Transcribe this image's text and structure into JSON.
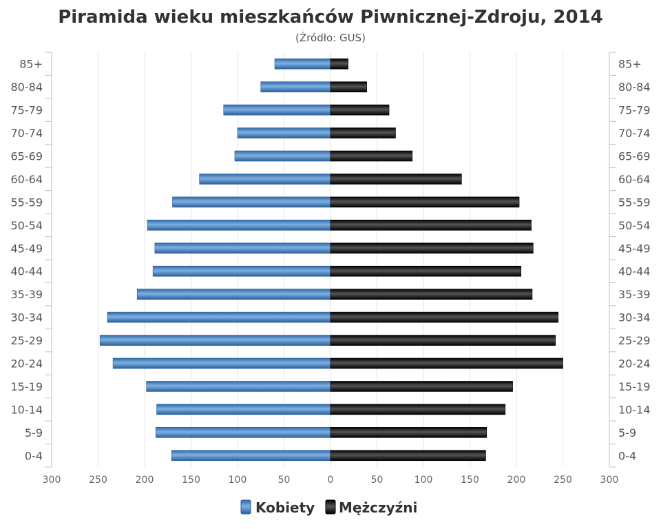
{
  "chart_data": {
    "type": "bar",
    "orientation": "horizontal",
    "layout": "population-pyramid",
    "title": "Piramida wieku mieszkańców Piwnicznej-Zdroju, 2014",
    "subtitle": "(Źródło: GUS)",
    "categories": [
      "0-4",
      "5-9",
      "10-14",
      "15-19",
      "20-24",
      "25-29",
      "30-34",
      "35-39",
      "40-44",
      "45-49",
      "50-54",
      "55-59",
      "60-64",
      "65-69",
      "70-74",
      "75-79",
      "80-84",
      "85+"
    ],
    "series": [
      {
        "name": "Kobiety",
        "side": "left",
        "color": "#4a86c8",
        "values": [
          171,
          188,
          187,
          198,
          234,
          248,
          240,
          208,
          191,
          189,
          197,
          170,
          141,
          103,
          100,
          115,
          75,
          60
        ]
      },
      {
        "name": "Mężczyźni",
        "side": "right",
        "color": "#1a1a1a",
        "values": [
          167,
          168,
          188,
          196,
          250,
          242,
          245,
          217,
          205,
          218,
          216,
          203,
          141,
          88,
          70,
          63,
          39,
          19
        ]
      }
    ],
    "xlim": [
      -300,
      300
    ],
    "x_ticks": [
      {
        "value": -300,
        "label": "300"
      },
      {
        "value": -250,
        "label": "250"
      },
      {
        "value": -200,
        "label": "200"
      },
      {
        "value": -150,
        "label": "150"
      },
      {
        "value": -100,
        "label": "100"
      },
      {
        "value": -50,
        "label": "50"
      },
      {
        "value": 0,
        "label": "0"
      },
      {
        "value": 50,
        "label": "50"
      },
      {
        "value": 100,
        "label": "100"
      },
      {
        "value": 150,
        "label": "150"
      },
      {
        "value": 200,
        "label": "200"
      },
      {
        "value": 250,
        "label": "250"
      },
      {
        "value": 300,
        "label": "300"
      }
    ],
    "grid": true,
    "legend_position": "bottom-center"
  }
}
